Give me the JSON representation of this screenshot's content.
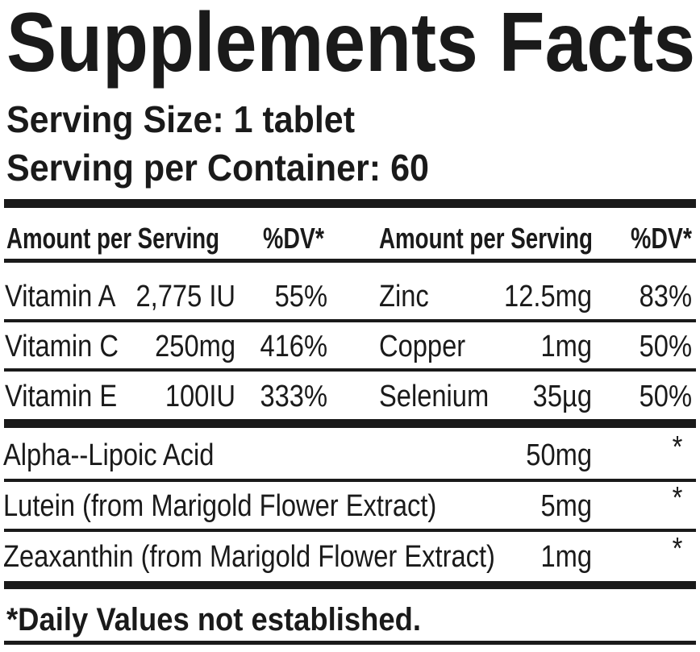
{
  "title": "Supplements Facts",
  "serving_size": "Serving Size: 1 tablet",
  "servings_per_container": "Serving per Container: 60",
  "table": {
    "header": [
      "Amount per Serving",
      "%DV*",
      "Amount per Serving",
      "%DV*"
    ],
    "rows": [
      [
        "Vitamin A",
        "2,775 IU",
        "55%",
        "Zinc",
        "12.5mg",
        "83%"
      ],
      [
        "Vitamin C",
        "250mg",
        "416%",
        "Copper",
        "1mg",
        "50%"
      ],
      [
        "Vitamin E",
        "100IU",
        "333%",
        "Selenium",
        "35µg",
        "50%"
      ]
    ],
    "other_rows": [
      [
        "Alpha--Lipoic Acid",
        "50mg",
        "*"
      ],
      [
        "Lutein (from Marigold Flower Extract)",
        "5mg",
        "*"
      ],
      [
        "Zeaxanthin (from Marigold Flower Extract)",
        "1mg",
        "*"
      ]
    ]
  },
  "footnote": "*Daily Values not established."
}
